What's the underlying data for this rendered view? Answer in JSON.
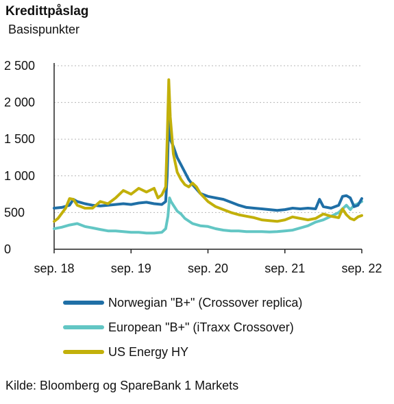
{
  "header": {
    "title": "Kredittpåslag",
    "subtitle": "Basispunkter"
  },
  "source": "Kilde: Bloomberg og SpareBank 1 Markets",
  "colors": {
    "norwegian": "#1f6fa6",
    "european": "#62c6c4",
    "us_energy": "#c2b00a",
    "grid": "#b5b5b5",
    "axis": "#222222"
  },
  "chart_data": {
    "type": "line",
    "title": "Kredittpåslag",
    "ylabel": "Basispunkter",
    "xlabel": "",
    "ylim": [
      0,
      2500
    ],
    "y_ticks": [
      {
        "value": 0,
        "label": "0"
      },
      {
        "value": 500,
        "label": "500"
      },
      {
        "value": 1000,
        "label": "1 000"
      },
      {
        "value": 1500,
        "label": "1 500"
      },
      {
        "value": 2000,
        "label": "2 000"
      },
      {
        "value": 2500,
        "label": "2 500"
      }
    ],
    "x_ticks": [
      {
        "value": 2018.7,
        "label": "sep. 18"
      },
      {
        "value": 2019.7,
        "label": "sep. 19"
      },
      {
        "value": 2020.7,
        "label": "sep. 20"
      },
      {
        "value": 2021.7,
        "label": "sep. 21"
      },
      {
        "value": 2022.7,
        "label": "sep. 22"
      }
    ],
    "xlim": [
      2018.7,
      2022.7
    ],
    "grid": true,
    "legend_position": "bottom",
    "series": [
      {
        "name": "Norwegian \"B+\" (Crossover replica)",
        "color": "#1f6fa6",
        "points": [
          [
            2018.7,
            560
          ],
          [
            2018.8,
            570
          ],
          [
            2018.9,
            600
          ],
          [
            2018.95,
            680
          ],
          [
            2019.0,
            650
          ],
          [
            2019.1,
            620
          ],
          [
            2019.2,
            600
          ],
          [
            2019.3,
            590
          ],
          [
            2019.4,
            600
          ],
          [
            2019.5,
            610
          ],
          [
            2019.6,
            620
          ],
          [
            2019.7,
            610
          ],
          [
            2019.8,
            630
          ],
          [
            2019.9,
            640
          ],
          [
            2020.0,
            620
          ],
          [
            2020.1,
            610
          ],
          [
            2020.15,
            650
          ],
          [
            2020.17,
            1000
          ],
          [
            2020.19,
            1780
          ],
          [
            2020.21,
            1500
          ],
          [
            2020.25,
            1400
          ],
          [
            2020.3,
            1250
          ],
          [
            2020.35,
            1150
          ],
          [
            2020.4,
            1050
          ],
          [
            2020.45,
            950
          ],
          [
            2020.5,
            880
          ],
          [
            2020.55,
            820
          ],
          [
            2020.6,
            760
          ],
          [
            2020.7,
            720
          ],
          [
            2020.8,
            700
          ],
          [
            2020.9,
            680
          ],
          [
            2021.0,
            640
          ],
          [
            2021.1,
            600
          ],
          [
            2021.2,
            570
          ],
          [
            2021.3,
            560
          ],
          [
            2021.4,
            550
          ],
          [
            2021.5,
            540
          ],
          [
            2021.6,
            530
          ],
          [
            2021.7,
            540
          ],
          [
            2021.8,
            560
          ],
          [
            2021.9,
            550
          ],
          [
            2022.0,
            560
          ],
          [
            2022.1,
            550
          ],
          [
            2022.15,
            680
          ],
          [
            2022.2,
            580
          ],
          [
            2022.3,
            560
          ],
          [
            2022.4,
            600
          ],
          [
            2022.45,
            720
          ],
          [
            2022.5,
            730
          ],
          [
            2022.55,
            700
          ],
          [
            2022.6,
            580
          ],
          [
            2022.65,
            600
          ],
          [
            2022.7,
            690
          ]
        ]
      },
      {
        "name": "European \"B+\" (iTraxx Crossover)",
        "color": "#62c6c4",
        "points": [
          [
            2018.7,
            280
          ],
          [
            2018.8,
            300
          ],
          [
            2018.9,
            330
          ],
          [
            2019.0,
            350
          ],
          [
            2019.1,
            310
          ],
          [
            2019.2,
            290
          ],
          [
            2019.3,
            270
          ],
          [
            2019.4,
            250
          ],
          [
            2019.5,
            250
          ],
          [
            2019.6,
            240
          ],
          [
            2019.7,
            230
          ],
          [
            2019.8,
            230
          ],
          [
            2019.9,
            220
          ],
          [
            2020.0,
            220
          ],
          [
            2020.1,
            230
          ],
          [
            2020.15,
            280
          ],
          [
            2020.18,
            450
          ],
          [
            2020.2,
            700
          ],
          [
            2020.22,
            650
          ],
          [
            2020.25,
            600
          ],
          [
            2020.3,
            520
          ],
          [
            2020.35,
            480
          ],
          [
            2020.4,
            420
          ],
          [
            2020.5,
            350
          ],
          [
            2020.6,
            320
          ],
          [
            2020.7,
            310
          ],
          [
            2020.8,
            280
          ],
          [
            2020.9,
            260
          ],
          [
            2021.0,
            250
          ],
          [
            2021.1,
            250
          ],
          [
            2021.2,
            240
          ],
          [
            2021.3,
            240
          ],
          [
            2021.4,
            240
          ],
          [
            2021.5,
            235
          ],
          [
            2021.6,
            240
          ],
          [
            2021.7,
            250
          ],
          [
            2021.8,
            260
          ],
          [
            2021.9,
            290
          ],
          [
            2022.0,
            320
          ],
          [
            2022.1,
            370
          ],
          [
            2022.2,
            400
          ],
          [
            2022.3,
            450
          ],
          [
            2022.4,
            500
          ],
          [
            2022.45,
            550
          ],
          [
            2022.5,
            600
          ],
          [
            2022.55,
            540
          ],
          [
            2022.6,
            600
          ],
          [
            2022.65,
            620
          ],
          [
            2022.7,
            650
          ]
        ]
      },
      {
        "name": "US Energy HY",
        "color": "#c2b00a",
        "points": [
          [
            2018.7,
            380
          ],
          [
            2018.75,
            420
          ],
          [
            2018.85,
            560
          ],
          [
            2018.9,
            690
          ],
          [
            2018.95,
            680
          ],
          [
            2019.0,
            600
          ],
          [
            2019.1,
            560
          ],
          [
            2019.2,
            560
          ],
          [
            2019.3,
            650
          ],
          [
            2019.4,
            620
          ],
          [
            2019.5,
            700
          ],
          [
            2019.6,
            800
          ],
          [
            2019.7,
            750
          ],
          [
            2019.8,
            830
          ],
          [
            2019.9,
            780
          ],
          [
            2020.0,
            830
          ],
          [
            2020.05,
            700
          ],
          [
            2020.1,
            740
          ],
          [
            2020.15,
            850
          ],
          [
            2020.17,
            1500
          ],
          [
            2020.19,
            2310
          ],
          [
            2020.21,
            1800
          ],
          [
            2020.25,
            1300
          ],
          [
            2020.3,
            1050
          ],
          [
            2020.35,
            950
          ],
          [
            2020.4,
            880
          ],
          [
            2020.45,
            850
          ],
          [
            2020.5,
            900
          ],
          [
            2020.55,
            850
          ],
          [
            2020.6,
            760
          ],
          [
            2020.7,
            650
          ],
          [
            2020.8,
            580
          ],
          [
            2020.9,
            540
          ],
          [
            2021.0,
            500
          ],
          [
            2021.1,
            470
          ],
          [
            2021.2,
            450
          ],
          [
            2021.3,
            430
          ],
          [
            2021.4,
            400
          ],
          [
            2021.5,
            390
          ],
          [
            2021.6,
            380
          ],
          [
            2021.7,
            400
          ],
          [
            2021.8,
            440
          ],
          [
            2021.9,
            420
          ],
          [
            2022.0,
            400
          ],
          [
            2022.1,
            420
          ],
          [
            2022.2,
            480
          ],
          [
            2022.3,
            450
          ],
          [
            2022.4,
            430
          ],
          [
            2022.45,
            550
          ],
          [
            2022.5,
            470
          ],
          [
            2022.55,
            420
          ],
          [
            2022.6,
            400
          ],
          [
            2022.65,
            440
          ],
          [
            2022.7,
            460
          ]
        ]
      }
    ]
  }
}
